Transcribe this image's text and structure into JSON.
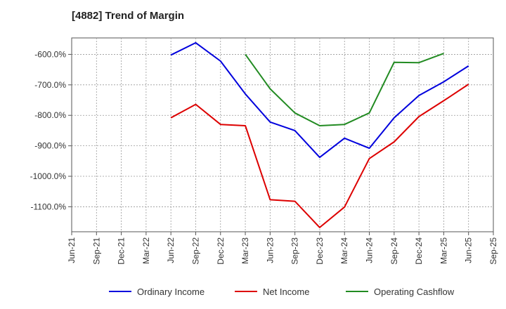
{
  "chart_data": {
    "type": "line",
    "title": "[4882]  Trend of Margin",
    "xlabel": "",
    "ylabel": "",
    "categories": [
      "Jun-21",
      "Sep-21",
      "Dec-21",
      "Mar-22",
      "Jun-22",
      "Sep-22",
      "Dec-22",
      "Mar-23",
      "Jun-23",
      "Sep-23",
      "Dec-23",
      "Mar-24",
      "Jun-24",
      "Sep-24",
      "Dec-24",
      "Mar-25",
      "Jun-25",
      "Sep-25"
    ],
    "ylim": [
      -1182,
      -546
    ],
    "yticks": [
      -600,
      -700,
      -800,
      -900,
      -1000,
      -1100
    ],
    "ytick_labels": [
      "-600.0%",
      "-700.0%",
      "-800.0%",
      "-900.0%",
      "-1000.0%",
      "-1100.0%"
    ],
    "grid": true,
    "legend_position": "bottom",
    "series": [
      {
        "name": "Ordinary Income",
        "color": "#0000dd",
        "values": [
          null,
          null,
          null,
          null,
          -602,
          -562,
          -622,
          -730,
          -822,
          -850,
          -938,
          -875,
          -908,
          -808,
          -735,
          -690,
          -638,
          null
        ]
      },
      {
        "name": "Net Income",
        "color": "#dd0000",
        "values": [
          null,
          null,
          null,
          null,
          -808,
          -764,
          -830,
          -834,
          -1077,
          -1082,
          -1168,
          -1101,
          -942,
          -887,
          -804,
          -752,
          -698,
          null
        ]
      },
      {
        "name": "Operating Cashflow",
        "color": "#228b22",
        "values": [
          null,
          null,
          null,
          null,
          null,
          null,
          null,
          -600,
          -713,
          -792,
          -834,
          -830,
          -792,
          -626,
          -627,
          -597,
          null,
          null
        ]
      }
    ]
  }
}
